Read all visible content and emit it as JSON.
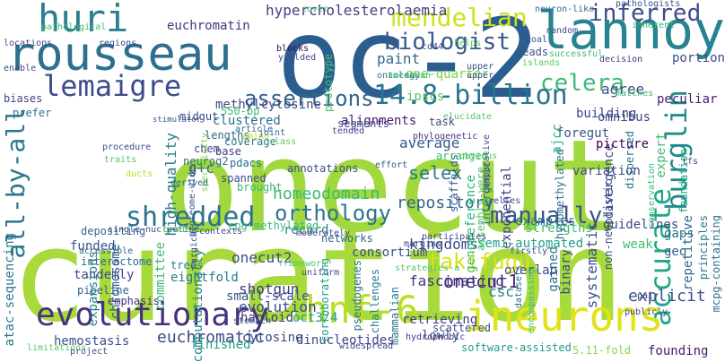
{
  "cloud": {
    "words": [
      {
        "text": "onecut",
        "color": "#a0d83e"
      },
      {
        "text": "curation",
        "color": "#a7da3a"
      },
      {
        "text": "oc-2",
        "color": "#2b5e8e"
      },
      {
        "text": "rousseau",
        "color": "#2c6f8e"
      },
      {
        "text": "lannoy",
        "color": "#26838f"
      },
      {
        "text": "huri",
        "color": "#2b7f8e"
      },
      {
        "text": "lemaigre",
        "color": "#3d4d8a"
      },
      {
        "text": "mendelian",
        "color": "#cde11d"
      },
      {
        "text": "inferred",
        "color": "#3d4b8a"
      },
      {
        "text": "hypercholesterolaemia",
        "color": "#443b84"
      },
      {
        "text": "euchromatin",
        "color": "#46337e"
      },
      {
        "text": "biologist",
        "color": "#39588c"
      },
      {
        "text": "pathologists",
        "color": "#3a548c"
      },
      {
        "text": "celera",
        "color": "#3cbb75"
      },
      {
        "text": "paint",
        "color": "#31688e"
      },
      {
        "text": "assertions",
        "color": "#33628d"
      },
      {
        "text": "14.8-billion",
        "color": "#2a768e"
      },
      {
        "text": "burglin",
        "color": "#238a8d"
      },
      {
        "text": "accurate",
        "color": "#22a785"
      },
      {
        "text": "all-by-all",
        "color": "#2a778e"
      },
      {
        "text": "shredded",
        "color": "#2c728e"
      },
      {
        "text": "orthology",
        "color": "#2c738e"
      },
      {
        "text": "manually",
        "color": "#3b528b"
      },
      {
        "text": "evolutionary",
        "color": "#46327e"
      },
      {
        "text": "hnf-6",
        "color": "#bade28"
      },
      {
        "text": "ineurons",
        "color": "#e0e318"
      },
      {
        "text": "kingdoms",
        "color": "#3e4989"
      },
      {
        "text": "takifugu",
        "color": "#d8e219"
      },
      {
        "text": "selex",
        "color": "#29798e"
      },
      {
        "text": "repository",
        "color": "#33638d"
      },
      {
        "text": "homeodomain",
        "color": "#3aba76"
      },
      {
        "text": "onecut2",
        "color": "#3e4a89"
      },
      {
        "text": "onecut1",
        "color": "#472d7b"
      },
      {
        "text": "shotgun",
        "color": "#433d84"
      },
      {
        "text": "explicit",
        "color": "#3b528b"
      },
      {
        "text": "fascinating",
        "color": "#453581"
      },
      {
        "text": "methylcytosine",
        "color": "#3f4788"
      },
      {
        "text": "high-quality",
        "color": "#287c8e"
      },
      {
        "text": "reference",
        "color": "#2db27d"
      },
      {
        "text": "exponential",
        "color": "#414487"
      },
      {
        "text": "average",
        "color": "#38588c"
      },
      {
        "text": "agree",
        "color": "#3e4a89"
      },
      {
        "text": "omnibus",
        "color": "#3f4889"
      },
      {
        "text": "building",
        "color": "#3f4889"
      },
      {
        "text": "alignments",
        "color": "#481d6f"
      },
      {
        "text": "ipscs",
        "color": "#56c667"
      },
      {
        "text": "one-quarter",
        "color": "#7ad151"
      },
      {
        "text": "clustered",
        "color": "#2e6e8e"
      },
      {
        "text": "lengths",
        "color": "#31688e"
      },
      {
        "text": "coverage",
        "color": "#2a778e"
      },
      {
        "text": "chem",
        "color": "#3c4f8a"
      },
      {
        "text": "neurog2",
        "color": "#2d718e"
      },
      {
        "text": "base",
        "color": "#443983"
      },
      {
        "text": "g+c",
        "color": "#33638d"
      },
      {
        "text": "pdacs",
        "color": "#2e6f8e"
      },
      {
        "text": "spanned",
        "color": "#3d4e8a"
      },
      {
        "text": "brought",
        "color": "#35b779"
      },
      {
        "text": "annotations",
        "color": "#3e4c8a"
      },
      {
        "text": "networks",
        "color": "#31678e"
      },
      {
        "text": "record",
        "color": "#24878e"
      },
      {
        "text": "funded",
        "color": "#3b528b"
      },
      {
        "text": "interactome",
        "color": "#2f6c8e"
      },
      {
        "text": "tandemly",
        "color": "#3f4889"
      },
      {
        "text": "pipeline",
        "color": "#31668e"
      },
      {
        "text": "emphasis",
        "color": "#46307e"
      },
      {
        "text": "hemostasis",
        "color": "#3c508b"
      },
      {
        "text": "atac-sequencing",
        "color": "#2a768e"
      },
      {
        "text": "euchromatic",
        "color": "#3f4788"
      },
      {
        "text": "finished",
        "color": "#1fa188"
      },
      {
        "text": "haploid",
        "color": "#46327e"
      },
      {
        "text": "dinucleotides",
        "color": "#3f4788"
      },
      {
        "text": "software-assisted",
        "color": "#1f9a8a"
      },
      {
        "text": "5.11-fold",
        "color": "#8bd646"
      },
      {
        "text": "founding",
        "color": "#48196b"
      },
      {
        "text": "cytosine",
        "color": "#3f4788"
      },
      {
        "text": "oct3/4",
        "color": "#1fa088"
      },
      {
        "text": "evolution",
        "color": "#3e4a89"
      },
      {
        "text": "chromosome",
        "color": "#365c8d"
      },
      {
        "text": "committee",
        "color": "#3aba76"
      },
      {
        "text": "eightfold",
        "color": "#2a788e"
      },
      {
        "text": "computationally",
        "color": "#25838e"
      },
      {
        "text": "small-scale",
        "color": "#3b528b"
      },
      {
        "text": "trees",
        "color": "#26818e"
      },
      {
        "text": "expansions",
        "color": "#26838f"
      },
      {
        "text": "genome",
        "color": "#3dbc74"
      },
      {
        "text": "csc",
        "color": "#228b8d"
      },
      {
        "text": "consortium",
        "color": "#3d4d8a"
      },
      {
        "text": "systematic",
        "color": "#3c508b"
      },
      {
        "text": "examples",
        "color": "#2d708e"
      },
      {
        "text": "gained",
        "color": "#2c728e"
      },
      {
        "text": "binary",
        "color": "#3e4a89"
      },
      {
        "text": "retrieving",
        "color": "#443a83"
      },
      {
        "text": "lowly",
        "color": "#38588c"
      },
      {
        "text": "scattered",
        "color": "#3b528b"
      },
      {
        "text": "corroborating",
        "color": "#1fa088"
      },
      {
        "text": "pseudogenes",
        "color": "#2c728e"
      },
      {
        "text": "challenges",
        "color": "#26818e"
      },
      {
        "text": "mammalian",
        "color": "#2a788e"
      },
      {
        "text": "hydrophobic",
        "color": "#46317e"
      },
      {
        "text": "overlap",
        "color": "#3e4989"
      },
      {
        "text": "semi-automated",
        "color": "#1fa188"
      },
      {
        "text": "strengths",
        "color": "#3fbc73"
      },
      {
        "text": "guidelines",
        "color": "#3e4a89"
      },
      {
        "text": "divergence",
        "color": "#3f4788"
      },
      {
        "text": "variation",
        "color": "#3e4c8a"
      },
      {
        "text": "hypomethylated",
        "color": "#2c718e"
      },
      {
        "text": "non-neoplastic",
        "color": "#3c508b"
      },
      {
        "text": "picture",
        "color": "#440154"
      },
      {
        "text": "foregut",
        "color": "#3a548c"
      },
      {
        "text": "ajcc",
        "color": "#2ab07f"
      },
      {
        "text": "expert",
        "color": "#3dbc74"
      },
      {
        "text": "foundation",
        "color": "#25ab82"
      },
      {
        "text": "peculiar",
        "color": "#482071"
      },
      {
        "text": "dispersed",
        "color": "#2d718e"
      },
      {
        "text": "portion",
        "color": "#3e4a89"
      },
      {
        "text": "decision",
        "color": "#443a83"
      },
      {
        "text": "inherent",
        "color": "#3aba76"
      },
      {
        "text": "gaps",
        "color": "#2d718e"
      },
      {
        "text": "geo",
        "color": "#33638d"
      },
      {
        "text": "repetitive",
        "color": "#31678e"
      },
      {
        "text": "principles",
        "color": "#2a778e"
      },
      {
        "text": "mcpg-containing",
        "color": "#2b748e"
      },
      {
        "text": "task",
        "color": "#3e4a89"
      },
      {
        "text": "scaffolds",
        "color": "#355e8d"
      },
      {
        "text": "intergenic",
        "color": "#2e6e8e"
      },
      {
        "text": "phylogenetic",
        "color": "#46337f"
      },
      {
        "text": "arranged",
        "color": "#3dbc74"
      },
      {
        "text": "assembly-were",
        "color": "#52c569"
      },
      {
        "text": "segments",
        "color": "#3e4989"
      },
      {
        "text": "550-bp",
        "color": "#3dbc74"
      },
      {
        "text": "specificity",
        "color": "#7fd34e"
      },
      {
        "text": "midgut",
        "color": "#3e4c8a"
      },
      {
        "text": "prototype",
        "color": "#47c16e"
      },
      {
        "text": "ontology",
        "color": "#2b748e"
      },
      {
        "text": "cd44",
        "color": "#3c4f8a"
      },
      {
        "text": "reads",
        "color": "#3b528b"
      },
      {
        "text": "islands",
        "color": "#5ec962"
      },
      {
        "text": "regions",
        "color": "#3e4a89"
      },
      {
        "text": "locations",
        "color": "#3f4788"
      },
      {
        "text": "pathological",
        "color": "#3dbc74"
      },
      {
        "text": "cover",
        "color": "#46c06f"
      },
      {
        "text": "neuron-like",
        "color": "#31688e"
      },
      {
        "text": "blocks",
        "color": "#440154"
      },
      {
        "text": "yielded",
        "color": "#3f4788"
      },
      {
        "text": "helps",
        "color": "#5ec962"
      },
      {
        "text": "successful",
        "color": "#3dbc74"
      },
      {
        "text": "enable",
        "color": "#3e4a89"
      },
      {
        "text": "biases",
        "color": "#3f4788"
      },
      {
        "text": "prefer",
        "color": "#2b748e"
      },
      {
        "text": "stimulator",
        "color": "#3b528b"
      },
      {
        "text": "article",
        "color": "#2d708e"
      },
      {
        "text": "amino",
        "color": "#bade28"
      },
      {
        "text": "joint",
        "color": "#2d708e"
      },
      {
        "text": "class",
        "color": "#5ec962"
      },
      {
        "text": "tended",
        "color": "#3f4788"
      },
      {
        "text": "elucidate",
        "color": "#52c569"
      },
      {
        "text": "comparative",
        "color": "#3e4a89"
      },
      {
        "text": "effort",
        "color": "#3b528b"
      },
      {
        "text": "obvious",
        "color": "#5ec962"
      },
      {
        "text": "relies",
        "color": "#3f4788"
      },
      {
        "text": "matches",
        "color": "#3dbc74"
      },
      {
        "text": "upper",
        "color": "#3b528b"
      },
      {
        "text": "american",
        "color": "#3dbc74"
      },
      {
        "text": "upper",
        "color": "#3b528b"
      },
      {
        "text": "traits",
        "color": "#52c569"
      },
      {
        "text": "procedure",
        "color": "#3e4a89"
      },
      {
        "text": "ducts",
        "color": "#bade28"
      },
      {
        "text": "derived",
        "color": "#2d708e"
      },
      {
        "text": "cpg-methylated",
        "color": "#3dbc74"
      },
      {
        "text": "proteome-wide",
        "color": "#3b528b"
      },
      {
        "text": "depositing",
        "color": "#31688e"
      },
      {
        "text": "surgical",
        "color": "#3e4a89"
      },
      {
        "text": "moderately",
        "color": "#3f4788"
      },
      {
        "text": "participates",
        "color": "#3f4788"
      },
      {
        "text": "single-nucleotide",
        "color": "#3b528b"
      },
      {
        "text": "grades",
        "color": "#52c569"
      },
      {
        "text": "contexts",
        "color": "#3e4a89"
      },
      {
        "text": "accessible",
        "color": "#31688e"
      },
      {
        "text": "framework",
        "color": "#52c569"
      },
      {
        "text": "uniform",
        "color": "#3b528b"
      },
      {
        "text": "strategies-a",
        "color": "#52c569"
      },
      {
        "text": "margins",
        "color": "#3f4788"
      },
      {
        "text": "firstly",
        "color": "#3e4a89"
      },
      {
        "text": "datasets",
        "color": "#2d708e"
      },
      {
        "text": "encompassing",
        "color": "#3dbc74"
      },
      {
        "text": "publicly",
        "color": "#3f4788"
      },
      {
        "text": "pair",
        "color": "#3e4a89"
      },
      {
        "text": "stomach",
        "color": "#3b528b"
      },
      {
        "text": "widespread",
        "color": "#3f4788"
      },
      {
        "text": "limitations",
        "color": "#5ec962"
      },
      {
        "text": "project",
        "color": "#3b528b"
      },
      {
        "text": "random",
        "color": "#3e4a89"
      },
      {
        "text": "goal",
        "color": "#3b528b"
      },
      {
        "text": "tfs",
        "color": "#3f4788"
      },
      {
        "text": "conservation",
        "color": "#3dbc74"
      },
      {
        "text": "weak",
        "color": "#3dbc74"
      }
    ]
  }
}
